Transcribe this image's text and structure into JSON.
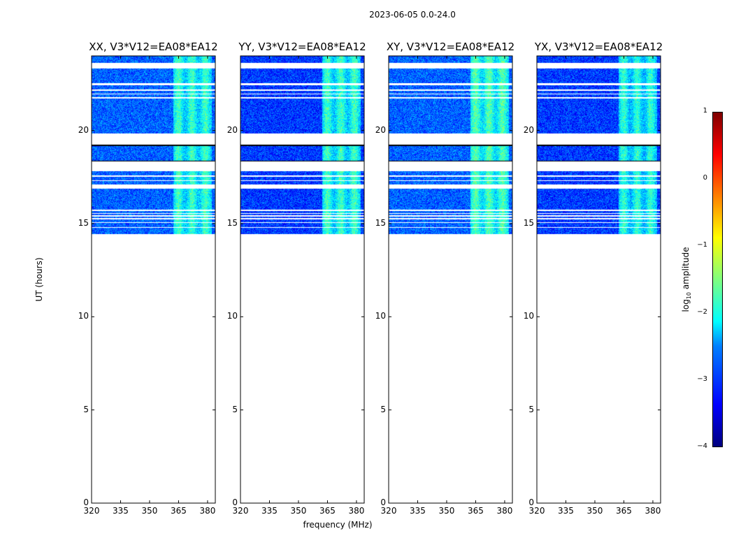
{
  "chart_data": {
    "type": "heatmap",
    "title": "2023-06-05 0.0-24.0",
    "xlabel": "frequency (MHz)",
    "ylabel": "UT (hours)",
    "xlim": [
      320,
      384
    ],
    "ylim": [
      0,
      24
    ],
    "xticks": [
      "320",
      "335",
      "350",
      "365",
      "380"
    ],
    "xtick_values": [
      320,
      335,
      350,
      365,
      380
    ],
    "yticks": [
      "0",
      "5",
      "10",
      "15",
      "20"
    ],
    "ytick_values": [
      0,
      5,
      10,
      15,
      20
    ],
    "data_time_range_hours": [
      14.45,
      24.0
    ],
    "flagged_gaps_hours": [
      [
        23.35,
        23.65
      ],
      [
        22.45,
        22.55
      ],
      [
        22.15,
        22.2
      ],
      [
        21.95,
        22.0
      ],
      [
        21.75,
        21.8
      ],
      [
        19.25,
        19.85
      ],
      [
        17.85,
        18.35
      ],
      [
        17.55,
        17.6
      ],
      [
        17.3,
        17.35
      ],
      [
        16.9,
        17.1
      ],
      [
        15.7,
        15.75
      ],
      [
        15.55,
        15.6
      ],
      [
        15.4,
        15.45
      ],
      [
        15.25,
        15.3
      ],
      [
        15.05,
        15.1
      ],
      [
        14.8,
        14.85
      ]
    ],
    "dark_lines_hours": [
      19.22,
      18.35
    ],
    "bright_band_mhz": [
      362,
      382
    ],
    "panels": [
      {
        "title": "XX, V3*V12=EA08*EA12",
        "base_log_amp": -2.9,
        "band_log_amp": -2.1
      },
      {
        "title": "YY, V3*V12=EA08*EA12",
        "base_log_amp": -3.1,
        "band_log_amp": -2.1
      },
      {
        "title": "XY, V3*V12=EA08*EA12",
        "base_log_amp": -2.9,
        "band_log_amp": -2.0
      },
      {
        "title": "YX, V3*V12=EA08*EA12",
        "base_log_amp": -3.1,
        "band_log_amp": -2.2
      }
    ],
    "colorbar": {
      "label": "log10 amplitude",
      "label_main": "log",
      "label_sub": "10",
      "label_rest": " amplitude",
      "range": [
        -4,
        1
      ],
      "ticks": [
        "1",
        "0",
        "−1",
        "−2",
        "−3",
        "−4"
      ],
      "tick_values": [
        1,
        0,
        -1,
        -2,
        -3,
        -4
      ],
      "colormap": "jet"
    }
  }
}
